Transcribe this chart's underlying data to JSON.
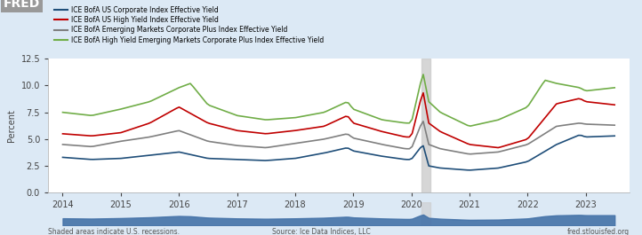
{
  "title": "",
  "fred_logo": "FRED",
  "ylabel": "Percent",
  "ylim": [
    0.0,
    12.5
  ],
  "yticks": [
    0.0,
    2.5,
    5.0,
    7.5,
    10.0,
    12.5
  ],
  "xlim_start": 2013.75,
  "xlim_end": 2023.75,
  "background_color": "#dce9f5",
  "plot_bg_color": "#ffffff",
  "legend_labels": [
    "ICE BofA US Corporate Index Effective Yield",
    "ICE BofA US High Yield Index Effective Yield",
    "ICE BofA Emerging Markets Corporate Plus Index Effective Yield",
    "ICE BofA High Yield Emerging Markets Corporate Plus Index Effective Yield"
  ],
  "legend_colors": [
    "#1f4e79",
    "#c00000",
    "#7f7f7f",
    "#70ad47"
  ],
  "recession_start": 2020.17,
  "recession_end": 2020.33,
  "footer_left": "Shaded areas indicate U.S. recessions.",
  "footer_center": "Source: Ice Data Indices, LLC",
  "footer_right": "fred.stlouisfed.org",
  "mini_chart_color": "#5b84b0"
}
